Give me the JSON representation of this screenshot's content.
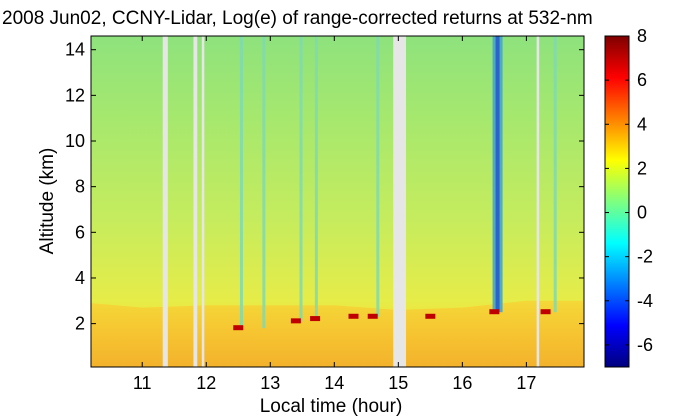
{
  "chart_data": {
    "type": "heatmap",
    "title": "2008 Jun02, CCNY-Lidar, Log(e) of range-corrected returns at 532-nm",
    "xlabel": "Local time (hour)",
    "ylabel": "Altitude (km)",
    "xlim": [
      10.2,
      17.9
    ],
    "ylim": [
      0.1,
      14.6
    ],
    "xticks": [
      11,
      12,
      13,
      14,
      15,
      16,
      17
    ],
    "yticks": [
      2,
      4,
      6,
      8,
      10,
      12,
      14
    ],
    "colorbar": {
      "range": [
        -7,
        8
      ],
      "ticks": [
        -6,
        -4,
        -2,
        0,
        2,
        4,
        6,
        8
      ],
      "colormap": "jet",
      "colors": [
        "#00007f",
        "#0000ff",
        "#007fff",
        "#00ffff",
        "#7fff7f",
        "#ffff00",
        "#ff7f00",
        "#ff0000",
        "#7f0000"
      ]
    },
    "data_gaps_hour": [
      [
        11.32,
        11.4
      ],
      [
        11.8,
        11.86
      ],
      [
        11.93,
        11.97
      ],
      [
        14.92,
        15.12
      ],
      [
        17.16,
        17.2
      ]
    ],
    "boundary_layer_top_km": [
      {
        "time": 10.2,
        "value": 2.9
      },
      {
        "time": 11.0,
        "value": 2.7
      },
      {
        "time": 12.0,
        "value": 2.8
      },
      {
        "time": 13.0,
        "value": 2.8
      },
      {
        "time": 14.0,
        "value": 2.8
      },
      {
        "time": 15.0,
        "value": 2.6
      },
      {
        "time": 16.0,
        "value": 2.7
      },
      {
        "time": 17.0,
        "value": 3.0
      },
      {
        "time": 17.9,
        "value": 3.0
      }
    ],
    "cloud_base_km": [
      {
        "time": 12.5,
        "value": 1.8
      },
      {
        "time": 13.4,
        "value": 2.1
      },
      {
        "time": 13.7,
        "value": 2.2
      },
      {
        "time": 14.3,
        "value": 2.3
      },
      {
        "time": 14.6,
        "value": 2.3
      },
      {
        "time": 15.5,
        "value": 2.3
      },
      {
        "time": 16.5,
        "value": 2.5
      },
      {
        "time": 17.3,
        "value": 2.5
      }
    ],
    "signal_dropout_columns_hour": [
      12.55,
      12.9,
      13.48,
      13.72,
      14.68,
      16.55,
      17.45
    ]
  }
}
